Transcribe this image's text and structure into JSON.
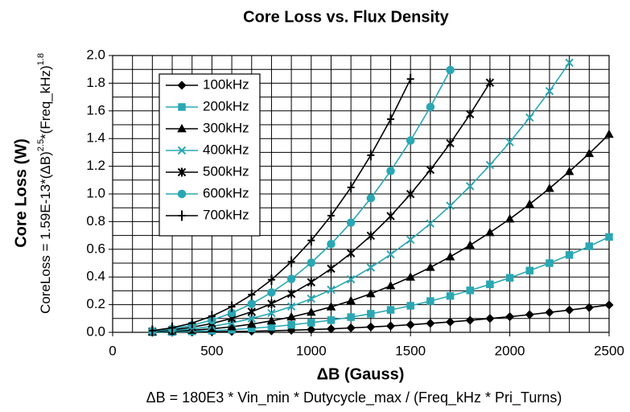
{
  "chart_data": {
    "type": "line",
    "title": "Core Loss vs. Flux Density",
    "y_label": "Core Loss (W)",
    "y_formula": [
      "CoreLoss = 1.59E-13*(ΔB)",
      "2.5",
      "*(Freq_kHz)",
      "1.8"
    ],
    "x_label": "ΔB (Gauss)",
    "x_formula": "ΔB = 180E3 * Vin_min * Dutycycle_max / (Freq_kHz * Pri_Turns)",
    "xlim": [
      0,
      2500
    ],
    "ylim": [
      0,
      2.0
    ],
    "xticks": [
      0,
      500,
      1000,
      1500,
      2000,
      2500
    ],
    "yticks": [
      {
        "value": 0,
        "label": "0.0"
      },
      0.2,
      0.4,
      0.6,
      0.8,
      {
        "value": 1,
        "label": "1.0"
      },
      1.2,
      1.4,
      1.6,
      1.8,
      {
        "value": 2,
        "label": "2.0"
      }
    ],
    "xgrid": [
      0,
      100,
      200,
      300,
      400,
      500,
      600,
      700,
      800,
      900,
      1000,
      1100,
      1200,
      1300,
      1400,
      1500,
      1600,
      1700,
      1800,
      1900,
      2000,
      2100,
      2200,
      2300,
      2400,
      2500
    ],
    "ygrid": [
      0,
      0.1,
      0.2,
      0.3,
      0.4,
      0.5,
      0.6,
      0.7,
      0.8,
      0.9,
      1.0,
      1.1,
      1.2,
      1.3,
      1.4,
      1.5,
      1.6,
      1.7,
      1.8,
      1.9,
      2.0
    ],
    "grid": true,
    "legend": "upper left",
    "series": [
      {
        "name": "100kHz",
        "color": "#000000",
        "marker": "diamond",
        "x": [
          200,
          300,
          400,
          500,
          600,
          700,
          800,
          900,
          1000,
          1100,
          1200,
          1300,
          1400,
          1500,
          1600,
          1700,
          1800,
          1900,
          2000,
          2100,
          2200,
          2300,
          2400,
          2500
        ],
        "values": [
          0.0,
          0.001,
          0.002,
          0.004,
          0.006,
          0.008,
          0.011,
          0.015,
          0.02,
          0.025,
          0.032,
          0.039,
          0.046,
          0.055,
          0.065,
          0.075,
          0.087,
          0.1,
          0.113,
          0.128,
          0.144,
          0.161,
          0.179,
          0.198
        ]
      },
      {
        "name": "200kHz",
        "color": "#2aa7b3",
        "marker": "square",
        "x": [
          200,
          300,
          400,
          500,
          600,
          700,
          800,
          900,
          1000,
          1100,
          1200,
          1300,
          1400,
          1500,
          1600,
          1700,
          1800,
          1900,
          2000,
          2100,
          2200,
          2300,
          2400,
          2500
        ],
        "values": [
          0.001,
          0.003,
          0.007,
          0.012,
          0.019,
          0.029,
          0.04,
          0.054,
          0.07,
          0.088,
          0.11,
          0.134,
          0.162,
          0.192,
          0.226,
          0.263,
          0.303,
          0.347,
          0.394,
          0.446,
          0.5,
          0.559,
          0.622,
          0.689
        ]
      },
      {
        "name": "300kHz",
        "color": "#000000",
        "marker": "triangle",
        "x": [
          200,
          300,
          400,
          500,
          600,
          700,
          800,
          900,
          1000,
          1100,
          1200,
          1300,
          1400,
          1500,
          1600,
          1700,
          1800,
          1900,
          2000,
          2100,
          2200,
          2300,
          2400,
          2500
        ],
        "values": [
          0.003,
          0.007,
          0.015,
          0.026,
          0.04,
          0.059,
          0.083,
          0.111,
          0.145,
          0.184,
          0.228,
          0.279,
          0.336,
          0.399,
          0.469,
          0.546,
          0.63,
          0.721,
          0.819,
          0.926,
          1.04,
          1.162,
          1.292,
          1.431
        ]
      },
      {
        "name": "400kHz",
        "color": "#2aa7b3",
        "marker": "x",
        "x": [
          200,
          300,
          400,
          500,
          600,
          700,
          800,
          900,
          1000,
          1100,
          1200,
          1300,
          1400,
          1500,
          1600,
          1700,
          1800,
          1900,
          2000,
          2100,
          2200,
          2300
        ],
        "values": [
          0.004,
          0.012,
          0.025,
          0.043,
          0.068,
          0.1,
          0.139,
          0.187,
          0.243,
          0.308,
          0.383,
          0.468,
          0.563,
          0.669,
          0.786,
          0.915,
          1.056,
          1.209,
          1.374,
          1.552,
          1.743,
          1.948
        ]
      },
      {
        "name": "500kHz",
        "color": "#000000",
        "marker": "asterisk",
        "x": [
          200,
          300,
          400,
          500,
          600,
          700,
          800,
          900,
          1000,
          1100,
          1200,
          1300,
          1400,
          1500,
          1600,
          1700,
          1800,
          1900
        ],
        "values": [
          0.006,
          0.018,
          0.037,
          0.064,
          0.101,
          0.149,
          0.207,
          0.278,
          0.362,
          0.46,
          0.572,
          0.698,
          0.84,
          0.999,
          1.174,
          1.366,
          1.576,
          1.804
        ]
      },
      {
        "name": "600kHz",
        "color": "#2aa7b3",
        "marker": "circle",
        "x": [
          200,
          300,
          400,
          500,
          600,
          700,
          800,
          900,
          1000,
          1100,
          1200,
          1300,
          1400,
          1500,
          1600,
          1700
        ],
        "values": [
          0.009,
          0.025,
          0.051,
          0.089,
          0.14,
          0.206,
          0.288,
          0.386,
          0.503,
          0.638,
          0.793,
          0.969,
          1.166,
          1.386,
          1.628,
          1.895
        ]
      },
      {
        "name": "700kHz",
        "color": "#000000",
        "marker": "plus",
        "x": [
          200,
          300,
          400,
          500,
          600,
          700,
          800,
          900,
          1000,
          1100,
          1200,
          1300,
          1400,
          1500
        ],
        "values": [
          0.012,
          0.033,
          0.067,
          0.117,
          0.185,
          0.272,
          0.38,
          0.51,
          0.664,
          0.843,
          1.047,
          1.28,
          1.54,
          1.83
        ]
      }
    ]
  }
}
